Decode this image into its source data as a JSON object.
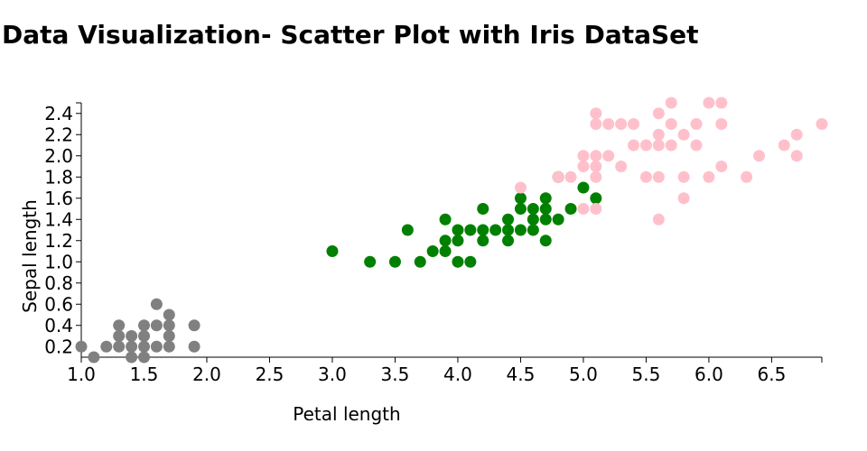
{
  "chart_data": {
    "type": "scatter",
    "title": "Data Visualization- Scatter Plot with Iris DataSet",
    "xlabel": "Petal length",
    "ylabel": "Sepal length",
    "xlim": [
      1.0,
      6.9
    ],
    "ylim": [
      0.1,
      2.5
    ],
    "xticks": [
      "1.0",
      "1.5",
      "2.0",
      "2.5",
      "3.0",
      "3.5",
      "4.0",
      "4.5",
      "5.0",
      "5.5",
      "6.0",
      "6.5"
    ],
    "yticks": [
      "0.2",
      "0.4",
      "0.6",
      "0.8",
      "1.0",
      "1.2",
      "1.4",
      "1.6",
      "1.8",
      "2.0",
      "2.2",
      "2.4"
    ],
    "grid": false,
    "legend": "none",
    "series": [
      {
        "color": "#808080",
        "points": [
          [
            1.0,
            0.2
          ],
          [
            1.1,
            0.1
          ],
          [
            1.2,
            0.2
          ],
          [
            1.3,
            0.2
          ],
          [
            1.3,
            0.3
          ],
          [
            1.3,
            0.4
          ],
          [
            1.4,
            0.1
          ],
          [
            1.4,
            0.2
          ],
          [
            1.4,
            0.3
          ],
          [
            1.5,
            0.1
          ],
          [
            1.5,
            0.2
          ],
          [
            1.5,
            0.3
          ],
          [
            1.5,
            0.4
          ],
          [
            1.6,
            0.2
          ],
          [
            1.6,
            0.4
          ],
          [
            1.6,
            0.6
          ],
          [
            1.7,
            0.2
          ],
          [
            1.7,
            0.3
          ],
          [
            1.7,
            0.4
          ],
          [
            1.7,
            0.5
          ],
          [
            1.9,
            0.2
          ],
          [
            1.9,
            0.4
          ]
        ]
      },
      {
        "color": "#008000",
        "points": [
          [
            3.0,
            1.1
          ],
          [
            3.3,
            1.0
          ],
          [
            3.5,
            1.0
          ],
          [
            3.6,
            1.3
          ],
          [
            3.7,
            1.0
          ],
          [
            3.8,
            1.1
          ],
          [
            3.9,
            1.1
          ],
          [
            3.9,
            1.2
          ],
          [
            3.9,
            1.4
          ],
          [
            4.0,
            1.0
          ],
          [
            4.0,
            1.2
          ],
          [
            4.0,
            1.3
          ],
          [
            4.1,
            1.0
          ],
          [
            4.1,
            1.3
          ],
          [
            4.2,
            1.2
          ],
          [
            4.2,
            1.3
          ],
          [
            4.2,
            1.5
          ],
          [
            4.3,
            1.3
          ],
          [
            4.4,
            1.2
          ],
          [
            4.4,
            1.3
          ],
          [
            4.4,
            1.4
          ],
          [
            4.5,
            1.3
          ],
          [
            4.5,
            1.5
          ],
          [
            4.5,
            1.6
          ],
          [
            4.6,
            1.3
          ],
          [
            4.6,
            1.4
          ],
          [
            4.6,
            1.5
          ],
          [
            4.7,
            1.2
          ],
          [
            4.7,
            1.4
          ],
          [
            4.7,
            1.5
          ],
          [
            4.7,
            1.6
          ],
          [
            4.8,
            1.4
          ],
          [
            4.8,
            1.8
          ],
          [
            4.9,
            1.5
          ],
          [
            5.0,
            1.7
          ],
          [
            5.1,
            1.6
          ]
        ]
      },
      {
        "color": "#ffc0cb",
        "points": [
          [
            4.5,
            1.7
          ],
          [
            4.8,
            1.8
          ],
          [
            4.9,
            1.8
          ],
          [
            5.0,
            1.5
          ],
          [
            5.0,
            1.9
          ],
          [
            5.0,
            2.0
          ],
          [
            5.1,
            1.5
          ],
          [
            5.1,
            1.8
          ],
          [
            5.1,
            1.9
          ],
          [
            5.1,
            2.0
          ],
          [
            5.1,
            2.3
          ],
          [
            5.1,
            2.4
          ],
          [
            5.2,
            2.0
          ],
          [
            5.2,
            2.3
          ],
          [
            5.3,
            1.9
          ],
          [
            5.3,
            2.3
          ],
          [
            5.4,
            2.1
          ],
          [
            5.4,
            2.3
          ],
          [
            5.5,
            1.8
          ],
          [
            5.5,
            2.1
          ],
          [
            5.6,
            1.4
          ],
          [
            5.6,
            1.8
          ],
          [
            5.6,
            2.1
          ],
          [
            5.6,
            2.2
          ],
          [
            5.6,
            2.4
          ],
          [
            5.7,
            2.1
          ],
          [
            5.7,
            2.3
          ],
          [
            5.7,
            2.5
          ],
          [
            5.8,
            1.6
          ],
          [
            5.8,
            1.8
          ],
          [
            5.8,
            2.2
          ],
          [
            5.9,
            2.1
          ],
          [
            5.9,
            2.3
          ],
          [
            6.0,
            1.8
          ],
          [
            6.0,
            2.5
          ],
          [
            6.1,
            1.9
          ],
          [
            6.1,
            2.3
          ],
          [
            6.1,
            2.5
          ],
          [
            6.3,
            1.8
          ],
          [
            6.4,
            2.0
          ],
          [
            6.6,
            2.1
          ],
          [
            6.7,
            2.0
          ],
          [
            6.7,
            2.2
          ],
          [
            6.9,
            2.3
          ]
        ]
      }
    ]
  }
}
